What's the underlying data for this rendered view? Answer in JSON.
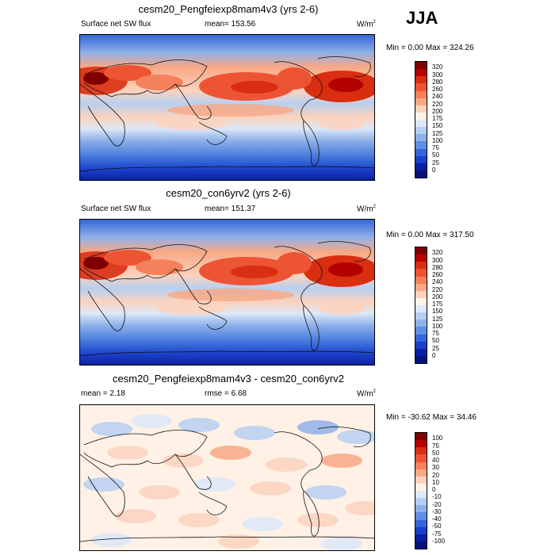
{
  "season": "JJA",
  "units": "W/m",
  "units_sup": "2",
  "panels": [
    {
      "title": "cesm20_Pengfeiexp8mam4v3 (yrs 2-6)",
      "left_text": "Surface net SW flux",
      "center_text": "mean= 153.56",
      "minmax": "Min =   0.00 Max = 324.26",
      "variant": "abs",
      "levels": [
        "320",
        "300",
        "280",
        "260",
        "240",
        "220",
        "200",
        "175",
        "150",
        "125",
        "100",
        "75",
        "50",
        "25",
        "0"
      ]
    },
    {
      "title": "cesm20_con6yrv2 (yrs 2-6)",
      "left_text": "Surface net SW flux",
      "center_text": "mean= 151.37",
      "minmax": "Min =   0.00 Max = 317.50",
      "variant": "abs",
      "levels": [
        "320",
        "300",
        "280",
        "260",
        "240",
        "220",
        "200",
        "175",
        "150",
        "125",
        "100",
        "75",
        "50",
        "25",
        "0"
      ]
    },
    {
      "title": "cesm20_Pengfeiexp8mam4v3 - cesm20_con6yrv2",
      "left_text": "mean =   2.18",
      "center_text": "rmse =   6.68",
      "minmax": "Min = -30.62 Max =  34.46",
      "variant": "diff",
      "levels": [
        "100",
        "75",
        "50",
        "40",
        "30",
        "20",
        "10",
        "0",
        "-10",
        "-20",
        "-30",
        "-40",
        "-50",
        "-75",
        "-100"
      ]
    }
  ],
  "colors": {
    "abs_scale": [
      "#7f0000",
      "#b30000",
      "#d92e10",
      "#ec5434",
      "#f4805c",
      "#f8a885",
      "#fcd2bd",
      "#fff1e6",
      "#dce8f8",
      "#b7cff0",
      "#8fb1ea",
      "#5f8ee2",
      "#3566d8",
      "#1a3fc8",
      "#0a1e9e",
      "#06127a"
    ],
    "diff_scale": [
      "#7f0000",
      "#b30000",
      "#d92e10",
      "#ec5434",
      "#f4805c",
      "#f8a885",
      "#fcd2bd",
      "#fff1e6",
      "#dce8f8",
      "#b7cff0",
      "#8fb1ea",
      "#5f8ee2",
      "#3566d8",
      "#1a3fc8",
      "#0a1e9e",
      "#06127a"
    ]
  }
}
